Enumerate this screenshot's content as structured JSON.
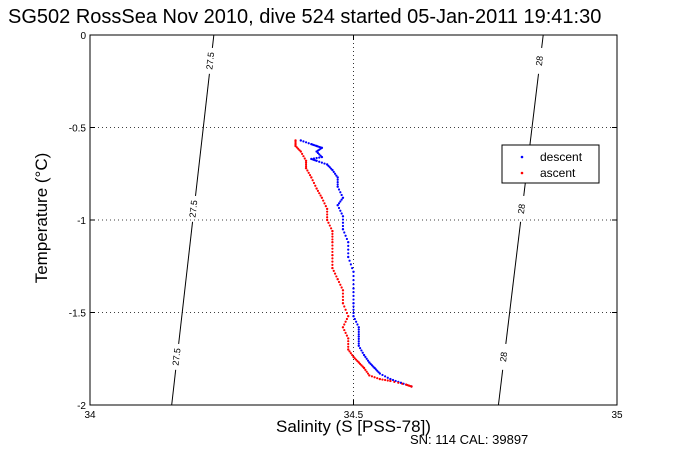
{
  "figure": {
    "title": "SG502 RossSea Nov 2010, dive 524 started 05-Jan-2011 19:41:30",
    "sn_cal": "SN: 114  CAL: 39897"
  },
  "chart_data": {
    "type": "scatter",
    "xlabel": "Salinity (S [PSS-78])",
    "ylabel": "Temperature (°C)",
    "xlim": [
      34,
      35
    ],
    "ylim": [
      -2,
      0
    ],
    "xticks": [
      "34",
      "34.5",
      "35"
    ],
    "yticks": [
      "-2",
      "-1.5",
      "-1",
      "-0.5",
      "0"
    ],
    "grid": true,
    "legend": {
      "placement": "right-upper",
      "entries": [
        "descent",
        "ascent"
      ]
    },
    "series": [
      {
        "name": "descent",
        "color": "#0000ff",
        "points": [
          [
            34.4,
            -0.57
          ],
          [
            34.42,
            -0.59
          ],
          [
            34.43,
            -0.6
          ],
          [
            34.44,
            -0.61
          ],
          [
            34.43,
            -0.63
          ],
          [
            34.44,
            -0.66
          ],
          [
            34.42,
            -0.67
          ],
          [
            34.43,
            -0.68
          ],
          [
            34.45,
            -0.7
          ],
          [
            34.46,
            -0.73
          ],
          [
            34.47,
            -0.77
          ],
          [
            34.47,
            -0.82
          ],
          [
            34.48,
            -0.88
          ],
          [
            34.47,
            -0.92
          ],
          [
            34.48,
            -0.98
          ],
          [
            34.48,
            -1.05
          ],
          [
            34.49,
            -1.12
          ],
          [
            34.49,
            -1.2
          ],
          [
            34.5,
            -1.28
          ],
          [
            34.5,
            -1.37
          ],
          [
            34.5,
            -1.45
          ],
          [
            34.5,
            -1.52
          ],
          [
            34.51,
            -1.58
          ],
          [
            34.51,
            -1.63
          ],
          [
            34.51,
            -1.68
          ],
          [
            34.52,
            -1.73
          ],
          [
            34.53,
            -1.77
          ],
          [
            34.54,
            -1.8
          ],
          [
            34.55,
            -1.83
          ],
          [
            34.57,
            -1.86
          ],
          [
            34.59,
            -1.88
          ],
          [
            34.61,
            -1.9
          ]
        ]
      },
      {
        "name": "ascent",
        "color": "#ff0000",
        "points": [
          [
            34.39,
            -0.57
          ],
          [
            34.39,
            -0.6
          ],
          [
            34.4,
            -0.63
          ],
          [
            34.41,
            -0.68
          ],
          [
            34.41,
            -0.72
          ],
          [
            34.42,
            -0.77
          ],
          [
            34.43,
            -0.83
          ],
          [
            34.44,
            -0.88
          ],
          [
            34.45,
            -0.94
          ],
          [
            34.45,
            -1.0
          ],
          [
            34.46,
            -1.06
          ],
          [
            34.46,
            -1.12
          ],
          [
            34.46,
            -1.19
          ],
          [
            34.46,
            -1.26
          ],
          [
            34.47,
            -1.32
          ],
          [
            34.48,
            -1.38
          ],
          [
            34.48,
            -1.45
          ],
          [
            34.49,
            -1.52
          ],
          [
            34.48,
            -1.58
          ],
          [
            34.49,
            -1.64
          ],
          [
            34.49,
            -1.7
          ],
          [
            34.5,
            -1.74
          ],
          [
            34.51,
            -1.77
          ],
          [
            34.52,
            -1.8
          ],
          [
            34.53,
            -1.84
          ],
          [
            34.55,
            -1.86
          ],
          [
            34.57,
            -1.87
          ],
          [
            34.6,
            -1.89
          ],
          [
            34.61,
            -1.9
          ]
        ]
      }
    ],
    "isopycnals": [
      {
        "label": "27.5",
        "points": [
          [
            34.235,
            0
          ],
          [
            34.155,
            -2
          ]
        ]
      },
      {
        "label": "28",
        "points": [
          [
            34.86,
            0
          ],
          [
            34.775,
            -2
          ]
        ]
      }
    ]
  }
}
